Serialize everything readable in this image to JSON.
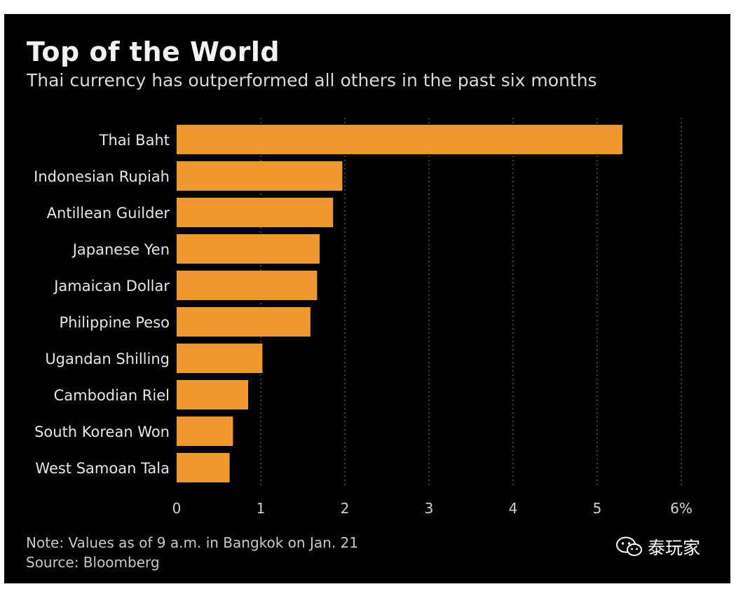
{
  "chart_data": {
    "type": "bar",
    "orientation": "horizontal",
    "title": "Top of the World",
    "subtitle": "Thai currency has outperformed all others in the past six months",
    "categories": [
      "Thai Baht",
      "Indonesian Rupiah",
      "Antillean Guilder",
      "Japanese Yen",
      "Jamaican Dollar",
      "Philippine Peso",
      "Ugandan Shilling",
      "Cambodian Riel",
      "South Korean Won",
      "West Samoan Tala"
    ],
    "values": [
      5.3,
      1.97,
      1.86,
      1.7,
      1.67,
      1.59,
      1.02,
      0.85,
      0.67,
      0.63
    ],
    "xlim": [
      0,
      6
    ],
    "xticks": [
      "0",
      "1",
      "2",
      "3",
      "4",
      "5",
      "6%"
    ],
    "xlabel": "",
    "ylabel": "",
    "grid": true,
    "bar_color": "#f0982d",
    "note": "Note: Values as of 9 a.m. in Bangkok on Jan. 21",
    "source": "Source: Bloomberg"
  },
  "watermark": {
    "text": "泰玩家",
    "icon": "wechat-icon"
  },
  "colors": {
    "background": "#000000",
    "text": "#f2f2f2",
    "grid": "#555555"
  }
}
